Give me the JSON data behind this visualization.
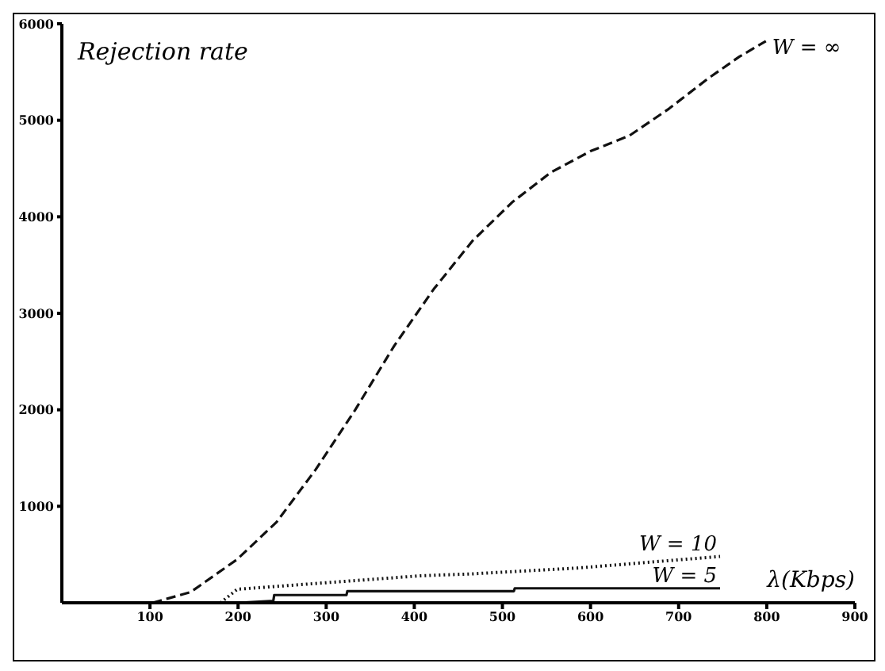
{
  "chart_data": {
    "type": "line",
    "ylabel": "Rejection rate",
    "xlabel": "λ(Kbps)",
    "xlim": [
      0,
      900
    ],
    "xticks": [
      100,
      200,
      300,
      400,
      500,
      600,
      700,
      800,
      900
    ],
    "ylim": [
      0,
      6000
    ],
    "yticks": [
      1000,
      2000,
      3000,
      4000,
      5000,
      6000
    ],
    "marker": "none",
    "series": [
      {
        "name": "W = ∞",
        "color": "#111111",
        "line_style": "dashed",
        "x": [
          103,
          146,
          199,
          244,
          288,
          333,
          377,
          422,
          466,
          511,
          555,
          600,
          644,
          689,
          733,
          769,
          799
        ],
        "values": [
          0,
          110,
          450,
          840,
          1380,
          2000,
          2660,
          3250,
          3750,
          4150,
          4460,
          4680,
          4840,
          5120,
          5430,
          5660,
          5820
        ]
      },
      {
        "name": "W = 10",
        "color": "#111111",
        "line_style": "dotted",
        "x": [
          180,
          199,
          288,
          407,
          466,
          585,
          747
        ],
        "values": [
          0,
          140,
          200,
          280,
          300,
          360,
          480
        ]
      },
      {
        "name": "W = 5",
        "color": "#111111",
        "line_style": "solid",
        "x": [
          200,
          240,
          241,
          323,
          324,
          513,
          514,
          747
        ],
        "values": [
          0,
          20,
          80,
          80,
          120,
          120,
          150,
          150
        ]
      }
    ]
  }
}
